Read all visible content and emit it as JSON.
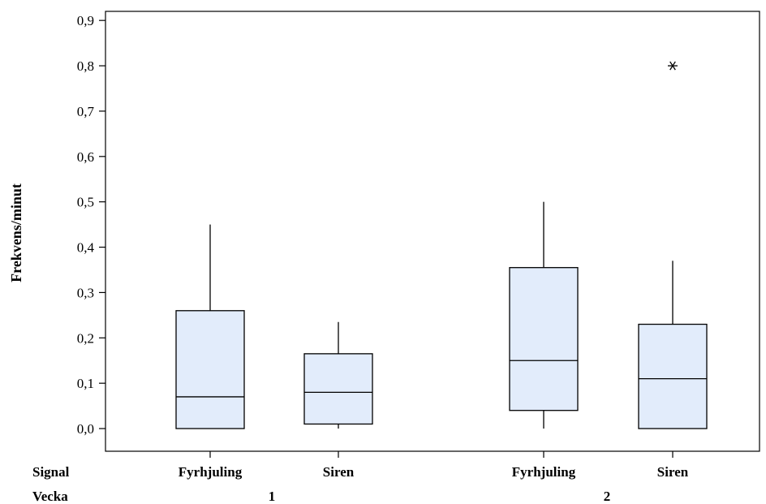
{
  "chart_data": {
    "type": "boxplot",
    "ylabel": "Frekvens/minut",
    "ylim": [
      -0.05,
      0.92
    ],
    "yticks": [
      "0,0",
      "0,1",
      "0,2",
      "0,3",
      "0,4",
      "0,5",
      "0,6",
      "0,7",
      "0,8",
      "0,9"
    ],
    "row_labels": {
      "signal": "Signal",
      "vecka": "Vecka"
    },
    "groups": [
      {
        "vecka": "1",
        "signal": "Fyrhjuling",
        "min": 0.0,
        "q1": 0.0,
        "median": 0.07,
        "q3": 0.26,
        "max": 0.45,
        "outliers": []
      },
      {
        "vecka": "1",
        "signal": "Siren",
        "min": 0.0,
        "q1": 0.01,
        "median": 0.08,
        "q3": 0.165,
        "max": 0.235,
        "outliers": []
      },
      {
        "vecka": "2",
        "signal": "Fyrhjuling",
        "min": 0.0,
        "q1": 0.04,
        "median": 0.15,
        "q3": 0.355,
        "max": 0.5,
        "outliers": []
      },
      {
        "vecka": "2",
        "signal": "Siren",
        "min": 0.0,
        "q1": 0.0,
        "median": 0.11,
        "q3": 0.23,
        "max": 0.37,
        "outliers": [
          0.8
        ]
      }
    ],
    "vecka_labels": [
      "1",
      "2"
    ],
    "box_fill": "#e2ecfb",
    "grid": false
  }
}
